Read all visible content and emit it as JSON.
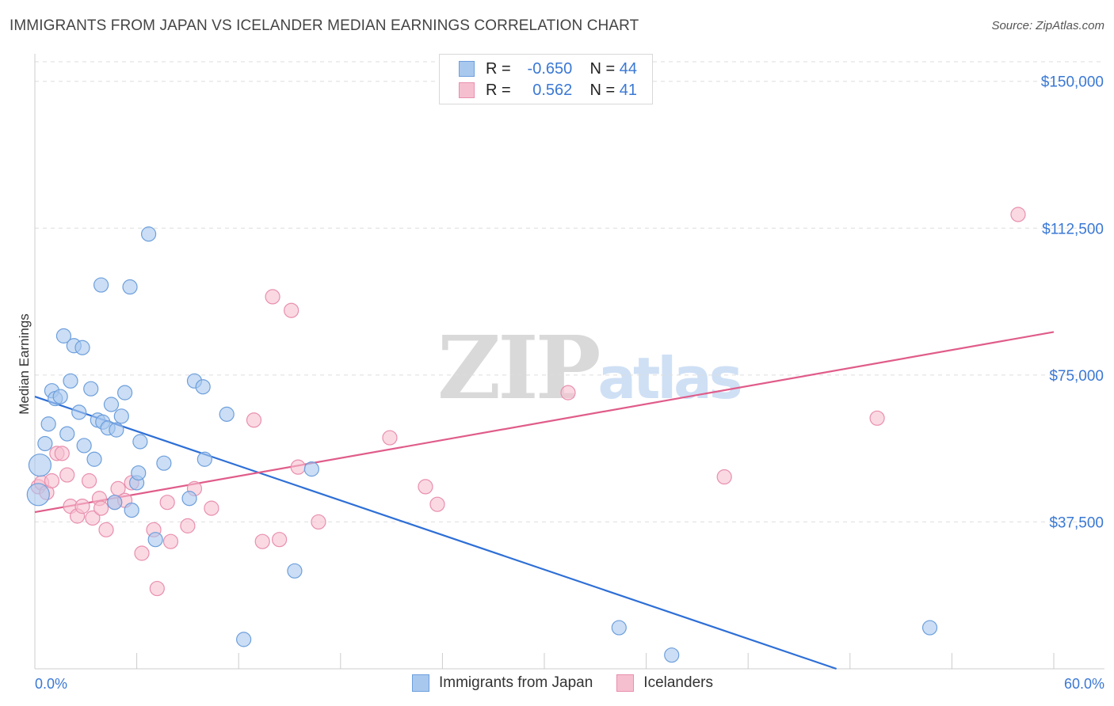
{
  "title": "IMMIGRANTS FROM JAPAN VS ICELANDER MEDIAN EARNINGS CORRELATION CHART",
  "source": "Source: ZipAtlas.com",
  "watermark": {
    "zip": "ZIP",
    "atlas": "atlas"
  },
  "legend_top": [
    {
      "r_label": "R =",
      "r_value": "-0.650",
      "n_label": "N =",
      "n_value": "44"
    },
    {
      "r_label": "R =",
      "r_value": " 0.562",
      "n_label": "N =",
      "n_value": "41"
    }
  ],
  "colors": {
    "blue_fill": "#a9c8ee",
    "blue_stroke": "#6d9fdc",
    "blue_line": "#2e6fd6",
    "pink_fill": "#f6bfd0",
    "pink_stroke": "#e98fad",
    "pink_line": "#e05c8a",
    "tick": "#3a78d4",
    "grid": "#dddddd"
  },
  "chart_data": {
    "type": "scatter",
    "title": "IMMIGRANTS FROM JAPAN VS ICELANDER MEDIAN EARNINGS CORRELATION CHART",
    "xlabel": "",
    "ylabel": "Median Earnings",
    "xlim": [
      0,
      60
    ],
    "ylim": [
      0,
      155000
    ],
    "x_tick_labels": [
      "0.0%",
      "60.0%"
    ],
    "y_ticks": [
      {
        "value": 37500,
        "label": "$37,500"
      },
      {
        "value": 75000,
        "label": "$75,000"
      },
      {
        "value": 112500,
        "label": "$112,500"
      },
      {
        "value": 150000,
        "label": "$150,000"
      }
    ],
    "series": [
      {
        "name": "Immigrants from Japan",
        "color": "#a9c8ee",
        "trend": {
          "x0": 0,
          "y0": 69500,
          "x1": 47.2,
          "y1": 0
        },
        "points": [
          [
            0.2,
            44500
          ],
          [
            0.3,
            52000
          ],
          [
            0.6,
            57500
          ],
          [
            0.8,
            62500
          ],
          [
            1.0,
            71000
          ],
          [
            1.2,
            69000
          ],
          [
            1.5,
            69500
          ],
          [
            1.7,
            85000
          ],
          [
            1.9,
            60000
          ],
          [
            2.1,
            73500
          ],
          [
            2.3,
            82500
          ],
          [
            2.6,
            65500
          ],
          [
            2.8,
            82000
          ],
          [
            2.9,
            57000
          ],
          [
            3.3,
            71500
          ],
          [
            3.5,
            53500
          ],
          [
            3.7,
            63500
          ],
          [
            3.9,
            98000
          ],
          [
            4.0,
            63000
          ],
          [
            4.3,
            61500
          ],
          [
            4.5,
            67500
          ],
          [
            4.7,
            42500
          ],
          [
            4.8,
            61000
          ],
          [
            5.1,
            64500
          ],
          [
            5.3,
            70500
          ],
          [
            5.6,
            97500
          ],
          [
            5.7,
            40500
          ],
          [
            6.0,
            47500
          ],
          [
            6.1,
            50000
          ],
          [
            6.2,
            58000
          ],
          [
            6.7,
            111000
          ],
          [
            7.1,
            33000
          ],
          [
            7.6,
            52500
          ],
          [
            9.1,
            43500
          ],
          [
            9.4,
            73500
          ],
          [
            9.9,
            72000
          ],
          [
            10.0,
            53500
          ],
          [
            11.3,
            65000
          ],
          [
            12.3,
            7500
          ],
          [
            15.3,
            25000
          ],
          [
            16.3,
            51000
          ],
          [
            34.4,
            10500
          ],
          [
            37.5,
            3500
          ],
          [
            52.7,
            10500
          ]
        ]
      },
      {
        "name": "Icelanders",
        "color": "#f6bfd0",
        "trend": {
          "x0": 0,
          "y0": 40000,
          "x1": 60,
          "y1": 86000
        },
        "points": [
          [
            0.2,
            46500
          ],
          [
            0.4,
            47500
          ],
          [
            0.7,
            45000
          ],
          [
            1.0,
            48000
          ],
          [
            1.3,
            55000
          ],
          [
            1.6,
            55000
          ],
          [
            1.9,
            49500
          ],
          [
            2.1,
            41500
          ],
          [
            2.5,
            39000
          ],
          [
            2.8,
            41500
          ],
          [
            3.2,
            48000
          ],
          [
            3.4,
            38500
          ],
          [
            3.8,
            43500
          ],
          [
            3.9,
            41000
          ],
          [
            4.2,
            35500
          ],
          [
            4.7,
            42500
          ],
          [
            4.9,
            46000
          ],
          [
            5.3,
            43000
          ],
          [
            5.7,
            47500
          ],
          [
            6.3,
            29500
          ],
          [
            7.0,
            35500
          ],
          [
            7.2,
            20500
          ],
          [
            7.8,
            42500
          ],
          [
            8.0,
            32500
          ],
          [
            9.0,
            36500
          ],
          [
            9.4,
            46000
          ],
          [
            10.4,
            41000
          ],
          [
            12.9,
            63500
          ],
          [
            13.4,
            32500
          ],
          [
            14.0,
            95000
          ],
          [
            14.4,
            33000
          ],
          [
            15.1,
            91500
          ],
          [
            15.5,
            51500
          ],
          [
            16.7,
            37500
          ],
          [
            20.9,
            59000
          ],
          [
            23.0,
            46500
          ],
          [
            23.7,
            42000
          ],
          [
            31.4,
            70500
          ],
          [
            40.6,
            49000
          ],
          [
            49.6,
            64000
          ],
          [
            57.9,
            116000
          ]
        ]
      }
    ]
  }
}
